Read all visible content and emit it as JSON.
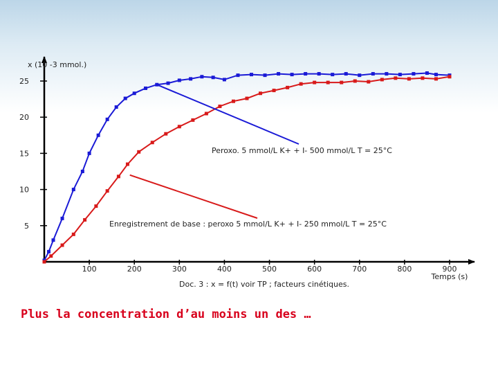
{
  "chart_data": {
    "type": "line",
    "ylabel": "x (10 -3 mmol.)",
    "xlabel": "Temps (s)",
    "caption": "Doc. 3 : x = f(t) voir TP ; facteurs cinétiques.",
    "xlim": [
      0,
      900
    ],
    "ylim": [
      0,
      27
    ],
    "x_ticks": [
      100,
      200,
      300,
      400,
      500,
      600,
      700,
      800,
      900
    ],
    "y_ticks": [
      5,
      10,
      15,
      20,
      25
    ],
    "grid": false,
    "series": [
      {
        "name": "Peroxo. 5 mmol/L K+ + I- 500 mmol/L T = 25°C",
        "color": "#1a1ad6",
        "points": [
          [
            0,
            0.2
          ],
          [
            10,
            1.4
          ],
          [
            20,
            3.0
          ],
          [
            40,
            6.0
          ],
          [
            65,
            10.0
          ],
          [
            85,
            12.5
          ],
          [
            100,
            15.0
          ],
          [
            120,
            17.5
          ],
          [
            140,
            19.7
          ],
          [
            160,
            21.4
          ],
          [
            180,
            22.6
          ],
          [
            200,
            23.3
          ],
          [
            225,
            24.0
          ],
          [
            250,
            24.5
          ],
          [
            275,
            24.7
          ],
          [
            300,
            25.1
          ],
          [
            325,
            25.3
          ],
          [
            350,
            25.6
          ],
          [
            375,
            25.5
          ],
          [
            400,
            25.2
          ],
          [
            430,
            25.8
          ],
          [
            460,
            25.9
          ],
          [
            490,
            25.8
          ],
          [
            520,
            26.0
          ],
          [
            550,
            25.9
          ],
          [
            580,
            26.0
          ],
          [
            610,
            26.0
          ],
          [
            640,
            25.9
          ],
          [
            670,
            26.0
          ],
          [
            700,
            25.8
          ],
          [
            730,
            26.0
          ],
          [
            760,
            26.0
          ],
          [
            790,
            25.9
          ],
          [
            820,
            26.0
          ],
          [
            850,
            26.1
          ],
          [
            870,
            25.9
          ],
          [
            900,
            25.8
          ]
        ]
      },
      {
        "name": "Enregistrement de base : peroxo 5 mmol/L K+ + I- 250 mmol/L T = 25°C",
        "color": "#d81a1a",
        "points": [
          [
            0,
            0
          ],
          [
            15,
            0.8
          ],
          [
            40,
            2.3
          ],
          [
            65,
            3.8
          ],
          [
            90,
            5.8
          ],
          [
            115,
            7.7
          ],
          [
            140,
            9.8
          ],
          [
            165,
            11.8
          ],
          [
            185,
            13.5
          ],
          [
            210,
            15.2
          ],
          [
            240,
            16.5
          ],
          [
            270,
            17.7
          ],
          [
            300,
            18.7
          ],
          [
            330,
            19.6
          ],
          [
            360,
            20.5
          ],
          [
            390,
            21.5
          ],
          [
            420,
            22.2
          ],
          [
            450,
            22.6
          ],
          [
            480,
            23.3
          ],
          [
            510,
            23.7
          ],
          [
            540,
            24.1
          ],
          [
            570,
            24.6
          ],
          [
            600,
            24.8
          ],
          [
            630,
            24.8
          ],
          [
            660,
            24.8
          ],
          [
            690,
            25.0
          ],
          [
            720,
            24.9
          ],
          [
            750,
            25.2
          ],
          [
            780,
            25.4
          ],
          [
            810,
            25.3
          ],
          [
            840,
            25.4
          ],
          [
            870,
            25.3
          ],
          [
            900,
            25.6
          ]
        ]
      }
    ],
    "annotations": [
      {
        "text": "Peroxo. 5 mmol/L K+ + I- 500 mmol/L T = 25°C",
        "series": 0,
        "target": [
          250,
          24.5
        ]
      },
      {
        "text": "Enregistrement de base : peroxo 5 mmol/L K+ + I- 250 mmol/L T = 25°C",
        "series": 1,
        "target": [
          190,
          12.0
        ]
      }
    ]
  },
  "slide": {
    "conclusion": "Plus la concentration d’au moins un des …"
  }
}
